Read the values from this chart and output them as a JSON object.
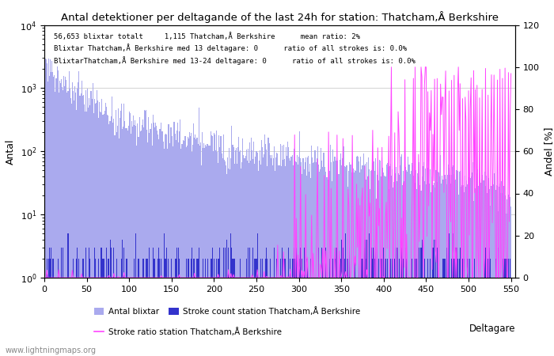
{
  "title": "Antal detektioner per deltagande of the last 24h for station: Thatcham,Å Berkshire",
  "ylabel_left": "Antal",
  "ylabel_right": "Andel [%]",
  "annotation_lines": [
    "56,653 blixtar totalt     1,115 Thatcham,Å Berkshire      mean ratio: 2%",
    "Blixtar Thatcham,Å Berkshire med 13 deltagare: 0      ratio of all strokes is: 0.0%",
    "BlixtarThatcham,Å Berkshire med 13-24 deltagare: 0      ratio of all strokes is: 0.0%"
  ],
  "watermark": "www.lightningmaps.org",
  "n_participants": 550,
  "bar_color_total": "#aaaaee",
  "bar_color_station": "#3333cc",
  "line_color": "#ff44ff",
  "xlim": [
    0,
    555
  ],
  "ylim_log": [
    1,
    10000
  ],
  "ylim_right": [
    0,
    120
  ],
  "xticks": [
    0,
    50,
    100,
    150,
    200,
    250,
    300,
    350,
    400,
    450,
    500,
    550
  ],
  "right_yticks": [
    0,
    20,
    40,
    60,
    80,
    100,
    120
  ],
  "figsize": [
    7.0,
    4.5
  ],
  "dpi": 100
}
